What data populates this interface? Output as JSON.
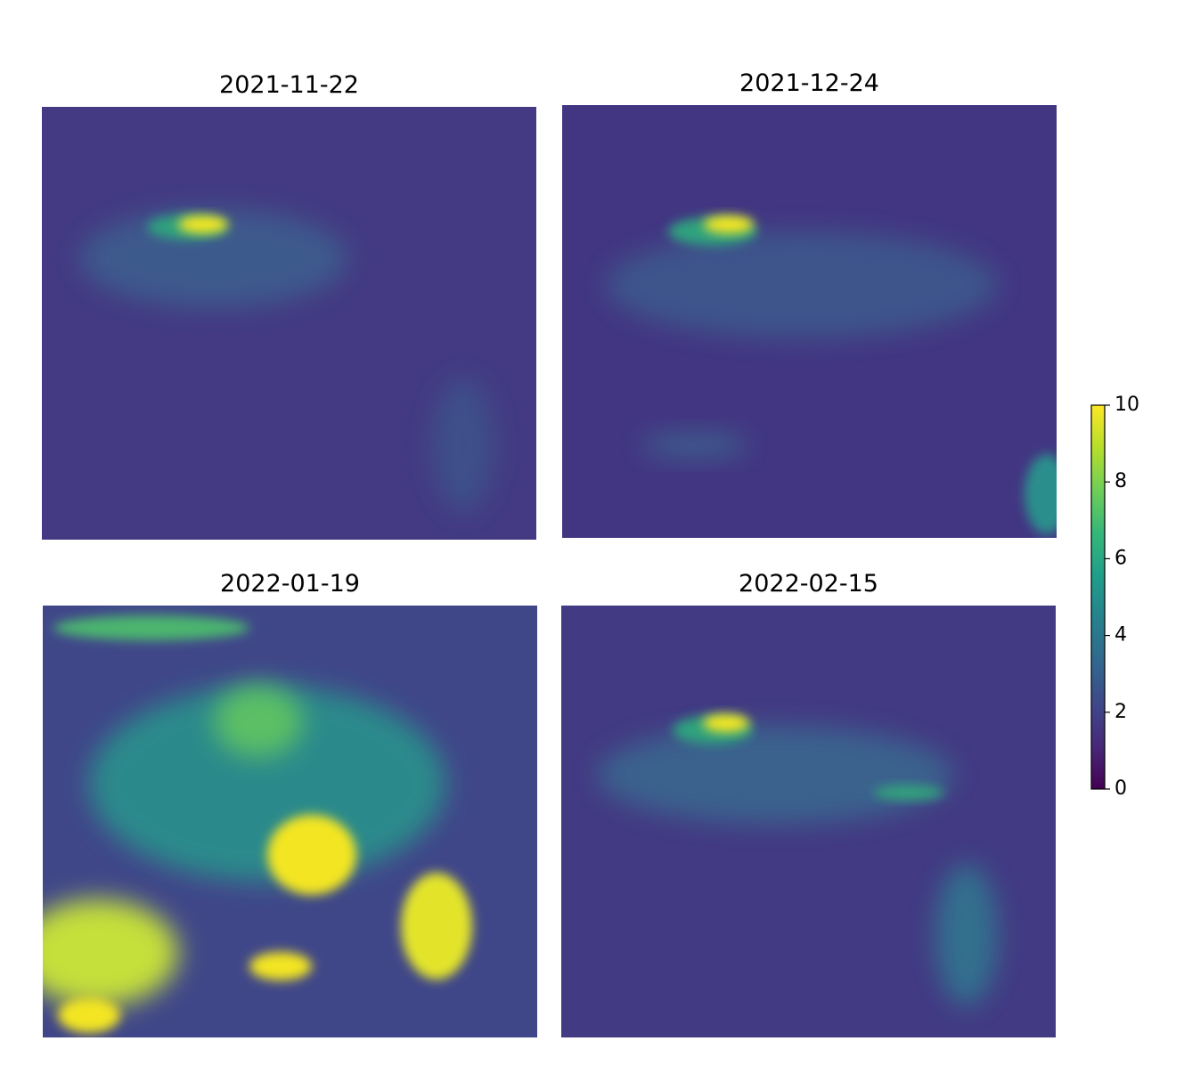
{
  "chart_data": {
    "type": "image-grid",
    "panels": [
      {
        "title": "2021-11-22"
      },
      {
        "title": "2021-12-24"
      },
      {
        "title": "2022-01-19"
      },
      {
        "title": "2022-02-15"
      }
    ],
    "colorbar": {
      "colormap": "viridis",
      "clim": [
        0,
        10
      ],
      "ticks": [
        0,
        2,
        4,
        6,
        8,
        10
      ]
    }
  }
}
